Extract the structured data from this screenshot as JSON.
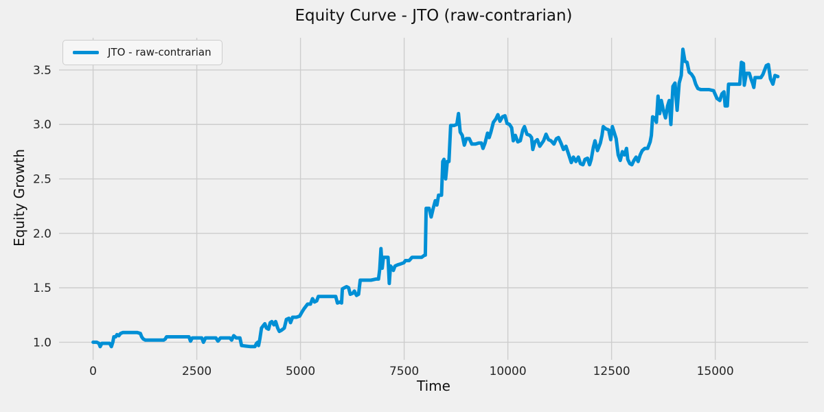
{
  "figure": {
    "background_color": "#f0f0f0",
    "grid_color": "#cdcdcd",
    "text_color": "#111111"
  },
  "chart_data": {
    "type": "line",
    "title": "Equity Curve - JTO (raw-contrarian)",
    "xlabel": "Time",
    "ylabel": "Equity Growth",
    "xlim": [
      -821,
      17241
    ],
    "ylim": [
      0.864,
      3.796
    ],
    "xticks": [
      0,
      2500,
      5000,
      7500,
      10000,
      12500,
      15000
    ],
    "yticks": [
      1.0,
      1.5,
      2.0,
      2.5,
      3.0,
      3.5
    ],
    "grid": true,
    "legend": {
      "position": "upper-left",
      "label": "JTO - raw-contrarian"
    },
    "series": [
      {
        "name": "JTO - raw-contrarian",
        "color": "#008fd5",
        "line_width": 5,
        "points": [
          [
            0,
            1.0
          ],
          [
            90,
            1.0
          ],
          [
            140,
            0.99
          ],
          [
            170,
            0.96
          ],
          [
            210,
            0.99
          ],
          [
            320,
            0.99
          ],
          [
            400,
            0.99
          ],
          [
            440,
            0.96
          ],
          [
            475,
            1.0
          ],
          [
            500,
            1.05
          ],
          [
            545,
            1.05
          ],
          [
            575,
            1.07
          ],
          [
            620,
            1.06
          ],
          [
            660,
            1.08
          ],
          [
            720,
            1.09
          ],
          [
            830,
            1.09
          ],
          [
            950,
            1.09
          ],
          [
            1060,
            1.09
          ],
          [
            1140,
            1.08
          ],
          [
            1170,
            1.05
          ],
          [
            1210,
            1.03
          ],
          [
            1260,
            1.02
          ],
          [
            1400,
            1.02
          ],
          [
            1560,
            1.02
          ],
          [
            1700,
            1.02
          ],
          [
            1740,
            1.03
          ],
          [
            1770,
            1.05
          ],
          [
            1900,
            1.05
          ],
          [
            2050,
            1.05
          ],
          [
            2200,
            1.05
          ],
          [
            2310,
            1.05
          ],
          [
            2350,
            1.01
          ],
          [
            2390,
            1.04
          ],
          [
            2500,
            1.04
          ],
          [
            2620,
            1.04
          ],
          [
            2660,
            1.0
          ],
          [
            2710,
            1.04
          ],
          [
            2820,
            1.04
          ],
          [
            2960,
            1.04
          ],
          [
            3010,
            1.01
          ],
          [
            3070,
            1.04
          ],
          [
            3200,
            1.04
          ],
          [
            3300,
            1.04
          ],
          [
            3340,
            1.02
          ],
          [
            3390,
            1.06
          ],
          [
            3450,
            1.04
          ],
          [
            3540,
            1.04
          ],
          [
            3580,
            0.97
          ],
          [
            3680,
            0.965
          ],
          [
            3800,
            0.96
          ],
          [
            3900,
            0.96
          ],
          [
            3940,
            0.99
          ],
          [
            3970,
            1.0
          ],
          [
            3990,
            0.97
          ],
          [
            4020,
            1.03
          ],
          [
            4060,
            1.13
          ],
          [
            4100,
            1.15
          ],
          [
            4140,
            1.17
          ],
          [
            4180,
            1.13
          ],
          [
            4230,
            1.12
          ],
          [
            4270,
            1.18
          ],
          [
            4310,
            1.19
          ],
          [
            4360,
            1.16
          ],
          [
            4400,
            1.19
          ],
          [
            4450,
            1.13
          ],
          [
            4490,
            1.1
          ],
          [
            4540,
            1.11
          ],
          [
            4610,
            1.13
          ],
          [
            4660,
            1.21
          ],
          [
            4720,
            1.22
          ],
          [
            4760,
            1.18
          ],
          [
            4810,
            1.23
          ],
          [
            4900,
            1.23
          ],
          [
            4980,
            1.24
          ],
          [
            5040,
            1.28
          ],
          [
            5090,
            1.31
          ],
          [
            5130,
            1.33
          ],
          [
            5170,
            1.35
          ],
          [
            5240,
            1.35
          ],
          [
            5290,
            1.4
          ],
          [
            5340,
            1.37
          ],
          [
            5390,
            1.38
          ],
          [
            5430,
            1.42
          ],
          [
            5550,
            1.42
          ],
          [
            5700,
            1.42
          ],
          [
            5850,
            1.42
          ],
          [
            5890,
            1.36
          ],
          [
            5950,
            1.37
          ],
          [
            5990,
            1.36
          ],
          [
            6010,
            1.49
          ],
          [
            6060,
            1.5
          ],
          [
            6110,
            1.51
          ],
          [
            6160,
            1.5
          ],
          [
            6200,
            1.44
          ],
          [
            6260,
            1.45
          ],
          [
            6300,
            1.47
          ],
          [
            6350,
            1.43
          ],
          [
            6400,
            1.44
          ],
          [
            6440,
            1.57
          ],
          [
            6550,
            1.57
          ],
          [
            6700,
            1.57
          ],
          [
            6820,
            1.58
          ],
          [
            6880,
            1.58
          ],
          [
            6910,
            1.67
          ],
          [
            6940,
            1.86
          ],
          [
            6970,
            1.68
          ],
          [
            7000,
            1.78
          ],
          [
            7060,
            1.78
          ],
          [
            7110,
            1.78
          ],
          [
            7140,
            1.54
          ],
          [
            7170,
            1.7
          ],
          [
            7210,
            1.68
          ],
          [
            7240,
            1.66
          ],
          [
            7280,
            1.7
          ],
          [
            7340,
            1.71
          ],
          [
            7420,
            1.72
          ],
          [
            7490,
            1.73
          ],
          [
            7530,
            1.75
          ],
          [
            7620,
            1.75
          ],
          [
            7690,
            1.78
          ],
          [
            7800,
            1.78
          ],
          [
            7920,
            1.78
          ],
          [
            7990,
            1.8
          ],
          [
            8010,
            1.8
          ],
          [
            8030,
            2.23
          ],
          [
            8100,
            2.23
          ],
          [
            8150,
            2.15
          ],
          [
            8200,
            2.23
          ],
          [
            8250,
            2.3
          ],
          [
            8290,
            2.26
          ],
          [
            8330,
            2.35
          ],
          [
            8400,
            2.35
          ],
          [
            8430,
            2.66
          ],
          [
            8460,
            2.68
          ],
          [
            8500,
            2.5
          ],
          [
            8540,
            2.66
          ],
          [
            8580,
            2.66
          ],
          [
            8620,
            2.99
          ],
          [
            8700,
            2.99
          ],
          [
            8770,
            3.0
          ],
          [
            8810,
            3.1
          ],
          [
            8850,
            2.93
          ],
          [
            8900,
            2.9
          ],
          [
            8950,
            2.81
          ],
          [
            9000,
            2.87
          ],
          [
            9070,
            2.87
          ],
          [
            9130,
            2.82
          ],
          [
            9220,
            2.82
          ],
          [
            9300,
            2.83
          ],
          [
            9360,
            2.83
          ],
          [
            9400,
            2.78
          ],
          [
            9450,
            2.83
          ],
          [
            9510,
            2.92
          ],
          [
            9550,
            2.88
          ],
          [
            9590,
            2.93
          ],
          [
            9650,
            3.02
          ],
          [
            9710,
            3.05
          ],
          [
            9760,
            3.09
          ],
          [
            9810,
            3.03
          ],
          [
            9870,
            3.07
          ],
          [
            9930,
            3.08
          ],
          [
            9980,
            3.01
          ],
          [
            10040,
            3.0
          ],
          [
            10090,
            2.97
          ],
          [
            10130,
            2.85
          ],
          [
            10180,
            2.9
          ],
          [
            10240,
            2.84
          ],
          [
            10300,
            2.85
          ],
          [
            10360,
            2.95
          ],
          [
            10400,
            2.98
          ],
          [
            10460,
            2.91
          ],
          [
            10530,
            2.9
          ],
          [
            10570,
            2.88
          ],
          [
            10600,
            2.77
          ],
          [
            10650,
            2.84
          ],
          [
            10710,
            2.86
          ],
          [
            10770,
            2.8
          ],
          [
            10860,
            2.85
          ],
          [
            10920,
            2.91
          ],
          [
            10980,
            2.86
          ],
          [
            11040,
            2.85
          ],
          [
            11110,
            2.82
          ],
          [
            11170,
            2.87
          ],
          [
            11220,
            2.88
          ],
          [
            11280,
            2.83
          ],
          [
            11340,
            2.77
          ],
          [
            11400,
            2.8
          ],
          [
            11470,
            2.72
          ],
          [
            11530,
            2.65
          ],
          [
            11580,
            2.7
          ],
          [
            11640,
            2.66
          ],
          [
            11700,
            2.7
          ],
          [
            11750,
            2.64
          ],
          [
            11810,
            2.63
          ],
          [
            11860,
            2.68
          ],
          [
            11920,
            2.69
          ],
          [
            11970,
            2.63
          ],
          [
            12010,
            2.68
          ],
          [
            12060,
            2.79
          ],
          [
            12100,
            2.85
          ],
          [
            12160,
            2.76
          ],
          [
            12230,
            2.83
          ],
          [
            12270,
            2.9
          ],
          [
            12300,
            2.98
          ],
          [
            12360,
            2.96
          ],
          [
            12430,
            2.95
          ],
          [
            12480,
            2.86
          ],
          [
            12520,
            2.98
          ],
          [
            12560,
            2.93
          ],
          [
            12610,
            2.87
          ],
          [
            12660,
            2.72
          ],
          [
            12710,
            2.67
          ],
          [
            12760,
            2.75
          ],
          [
            12810,
            2.72
          ],
          [
            12860,
            2.78
          ],
          [
            12890,
            2.68
          ],
          [
            12940,
            2.64
          ],
          [
            12990,
            2.63
          ],
          [
            13040,
            2.67
          ],
          [
            13090,
            2.7
          ],
          [
            13140,
            2.66
          ],
          [
            13190,
            2.72
          ],
          [
            13240,
            2.76
          ],
          [
            13300,
            2.78
          ],
          [
            13370,
            2.78
          ],
          [
            13430,
            2.84
          ],
          [
            13460,
            2.9
          ],
          [
            13490,
            3.07
          ],
          [
            13540,
            3.06
          ],
          [
            13580,
            3.02
          ],
          [
            13620,
            3.26
          ],
          [
            13660,
            3.1
          ],
          [
            13700,
            3.22
          ],
          [
            13750,
            3.13
          ],
          [
            13800,
            3.06
          ],
          [
            13850,
            3.17
          ],
          [
            13890,
            3.22
          ],
          [
            13930,
            3.0
          ],
          [
            13980,
            3.35
          ],
          [
            14030,
            3.38
          ],
          [
            14080,
            3.13
          ],
          [
            14130,
            3.38
          ],
          [
            14180,
            3.45
          ],
          [
            14220,
            3.69
          ],
          [
            14270,
            3.58
          ],
          [
            14320,
            3.57
          ],
          [
            14370,
            3.48
          ],
          [
            14430,
            3.46
          ],
          [
            14480,
            3.43
          ],
          [
            14530,
            3.37
          ],
          [
            14580,
            3.33
          ],
          [
            14650,
            3.32
          ],
          [
            14740,
            3.32
          ],
          [
            14850,
            3.32
          ],
          [
            14960,
            3.31
          ],
          [
            15040,
            3.24
          ],
          [
            15110,
            3.22
          ],
          [
            15160,
            3.28
          ],
          [
            15210,
            3.3
          ],
          [
            15240,
            3.17
          ],
          [
            15290,
            3.17
          ],
          [
            15320,
            3.37
          ],
          [
            15400,
            3.37
          ],
          [
            15500,
            3.37
          ],
          [
            15590,
            3.37
          ],
          [
            15630,
            3.57
          ],
          [
            15680,
            3.56
          ],
          [
            15700,
            3.36
          ],
          [
            15750,
            3.47
          ],
          [
            15820,
            3.47
          ],
          [
            15870,
            3.41
          ],
          [
            15900,
            3.38
          ],
          [
            15930,
            3.34
          ],
          [
            15960,
            3.43
          ],
          [
            16040,
            3.43
          ],
          [
            16100,
            3.43
          ],
          [
            16150,
            3.46
          ],
          [
            16230,
            3.54
          ],
          [
            16280,
            3.55
          ],
          [
            16330,
            3.42
          ],
          [
            16390,
            3.37
          ],
          [
            16440,
            3.45
          ],
          [
            16510,
            3.44
          ]
        ]
      }
    ]
  }
}
